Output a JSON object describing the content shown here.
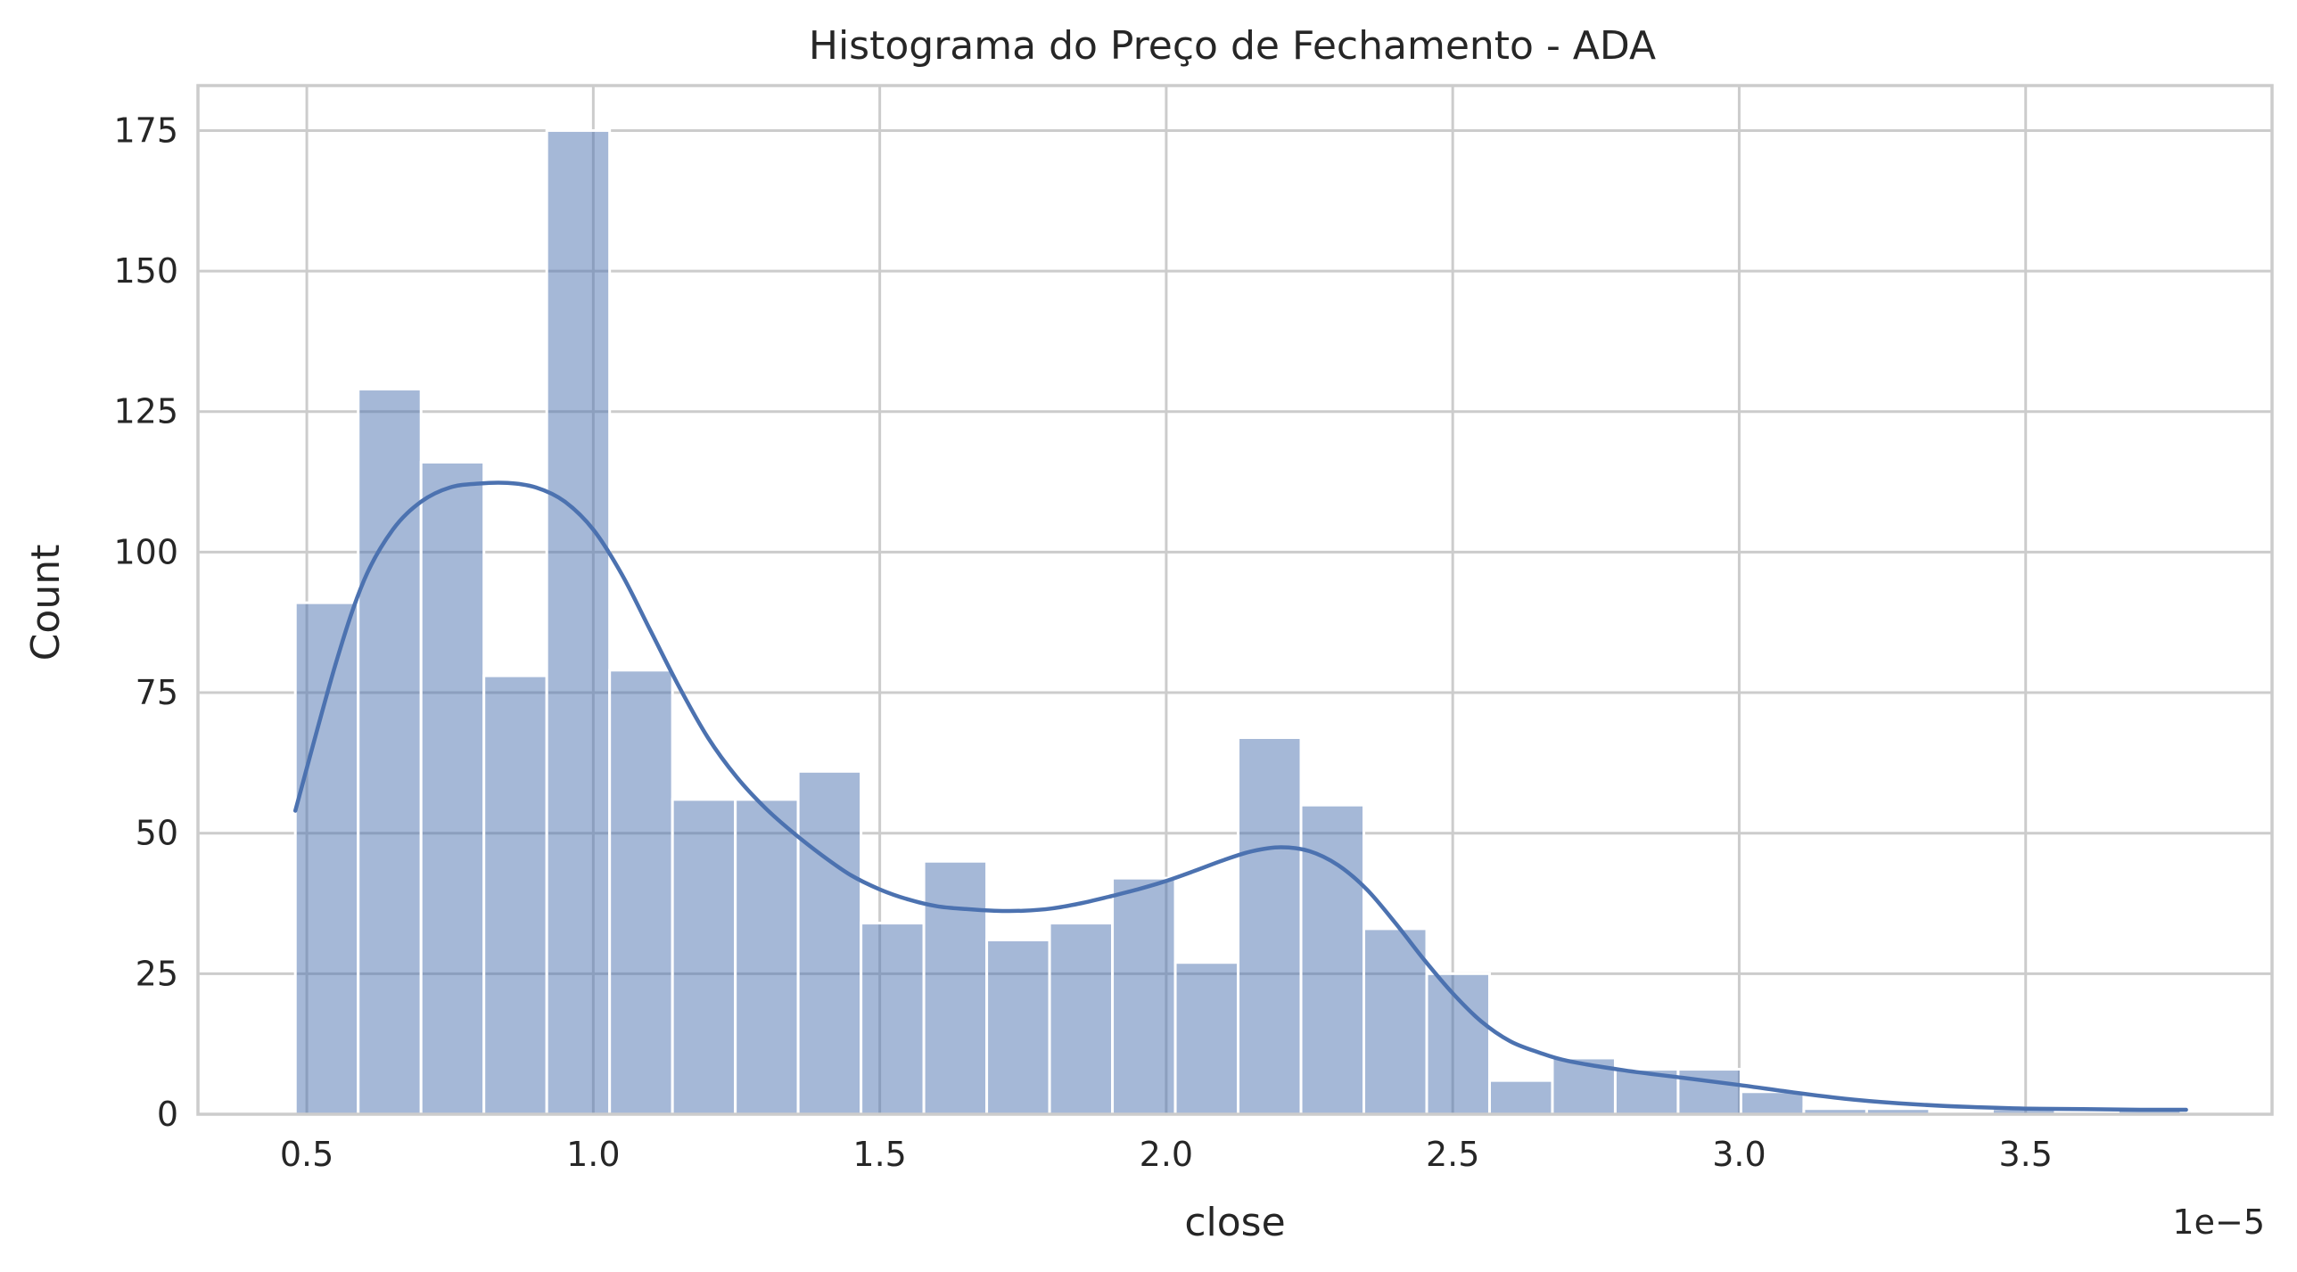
{
  "chart_data": {
    "type": "histogram",
    "title": "Histograma do Preço de Fechamento - ADA",
    "xlabel": "close",
    "ylabel": "Count",
    "x_offset_label": "1e−5",
    "x_scale_factor": 1e-05,
    "xlim": [
      0.31,
      3.93
    ],
    "ylim": [
      0,
      183
    ],
    "x_ticks": [
      0.5,
      1.0,
      1.5,
      2.0,
      2.5,
      3.0,
      3.5
    ],
    "x_tick_labels": [
      "0.5",
      "1.0",
      "1.5",
      "2.0",
      "2.5",
      "3.0",
      "3.5"
    ],
    "y_ticks": [
      0,
      25,
      50,
      75,
      100,
      125,
      150,
      175
    ],
    "y_tick_labels": [
      "0",
      "25",
      "50",
      "75",
      "100",
      "125",
      "150",
      "175"
    ],
    "grid": true,
    "bar_color": "#4c72b0",
    "bins": {
      "start": 0.48,
      "width": 0.1097,
      "counts": [
        91,
        129,
        116,
        78,
        175,
        79,
        56,
        56,
        61,
        34,
        45,
        31,
        34,
        42,
        27,
        67,
        55,
        33,
        25,
        6,
        10,
        8,
        8,
        4,
        1,
        1,
        0,
        1,
        0,
        1
      ]
    },
    "kde": {
      "color": "#4c72b0",
      "x": [
        0.48,
        0.55,
        0.6,
        0.65,
        0.7,
        0.75,
        0.8,
        0.85,
        0.9,
        0.95,
        1.0,
        1.05,
        1.1,
        1.15,
        1.2,
        1.25,
        1.3,
        1.35,
        1.4,
        1.45,
        1.5,
        1.55,
        1.6,
        1.65,
        1.7,
        1.75,
        1.8,
        1.85,
        1.9,
        1.95,
        2.0,
        2.05,
        2.1,
        2.15,
        2.2,
        2.25,
        2.3,
        2.35,
        2.4,
        2.45,
        2.5,
        2.55,
        2.6,
        2.65,
        2.7,
        2.8,
        2.9,
        3.0,
        3.1,
        3.2,
        3.3,
        3.4,
        3.5,
        3.6,
        3.7,
        3.78
      ],
      "y": [
        54,
        80,
        95,
        104,
        109,
        111.5,
        112.2,
        112.3,
        111.5,
        109,
        104,
        96,
        86,
        76,
        67,
        60,
        54.5,
        50,
        46,
        42.5,
        40,
        38.2,
        37,
        36.5,
        36.2,
        36.2,
        36.6,
        37.5,
        38.7,
        40,
        41.5,
        43.3,
        45.2,
        46.8,
        47.5,
        46.8,
        44.3,
        40,
        34,
        27.5,
        21.5,
        16.5,
        13,
        11,
        9.5,
        7.8,
        6.5,
        5.2,
        3.8,
        2.6,
        1.8,
        1.3,
        1,
        0.9,
        0.8,
        0.8
      ]
    }
  }
}
